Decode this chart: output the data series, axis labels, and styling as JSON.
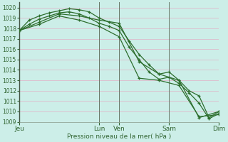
{
  "xlabel": "Pression niveau de la mer( hPa )",
  "bg_color": "#cceee8",
  "grid_color_h": "#ddbbcc",
  "grid_color_v": "#ddbbcc",
  "line_color": "#2d6e2d",
  "ylim": [
    1009,
    1020.5
  ],
  "xlim": [
    0,
    120
  ],
  "yticks": [
    1009,
    1010,
    1011,
    1012,
    1013,
    1014,
    1015,
    1016,
    1017,
    1018,
    1019,
    1020
  ],
  "xtick_positions": [
    0,
    48,
    60,
    90,
    120
  ],
  "xtick_labels": [
    "Jeu",
    "Lun",
    "Ven",
    "Sam",
    "Dim"
  ],
  "day_vlines": [
    48,
    60,
    90,
    120
  ],
  "lines": [
    {
      "x": [
        0,
        6,
        12,
        18,
        24,
        30,
        36,
        42,
        48,
        54,
        60,
        66,
        72,
        78,
        84,
        90,
        96,
        102,
        108,
        114,
        120
      ],
      "y": [
        1017.8,
        1018.8,
        1019.2,
        1019.5,
        1019.7,
        1019.9,
        1019.8,
        1019.6,
        1019.0,
        1018.6,
        1018.2,
        1016.8,
        1015.5,
        1014.5,
        1013.6,
        1013.8,
        1013.0,
        1012.0,
        1011.5,
        1009.4,
        1010.0
      ]
    },
    {
      "x": [
        0,
        6,
        12,
        18,
        24,
        30,
        36,
        42,
        48,
        54,
        60,
        66,
        72,
        78,
        84,
        90,
        96,
        102,
        108,
        114,
        120
      ],
      "y": [
        1017.8,
        1018.4,
        1018.9,
        1019.2,
        1019.5,
        1019.6,
        1019.4,
        1019.0,
        1018.5,
        1018.2,
        1017.8,
        1016.2,
        1015.0,
        1013.8,
        1013.1,
        1013.3,
        1012.7,
        1011.8,
        1010.8,
        1009.3,
        1009.8
      ]
    },
    {
      "x": [
        0,
        12,
        24,
        36,
        48,
        60,
        72,
        84,
        96,
        108,
        120
      ],
      "y": [
        1017.8,
        1018.6,
        1019.4,
        1019.2,
        1018.8,
        1018.5,
        1014.8,
        1013.6,
        1013.0,
        1009.4,
        1010.0
      ]
    },
    {
      "x": [
        0,
        12,
        24,
        36,
        48,
        60,
        72,
        84,
        96,
        108,
        120
      ],
      "y": [
        1017.8,
        1018.4,
        1019.2,
        1018.8,
        1018.2,
        1017.2,
        1013.2,
        1013.0,
        1012.5,
        1009.5,
        1009.7
      ]
    }
  ]
}
